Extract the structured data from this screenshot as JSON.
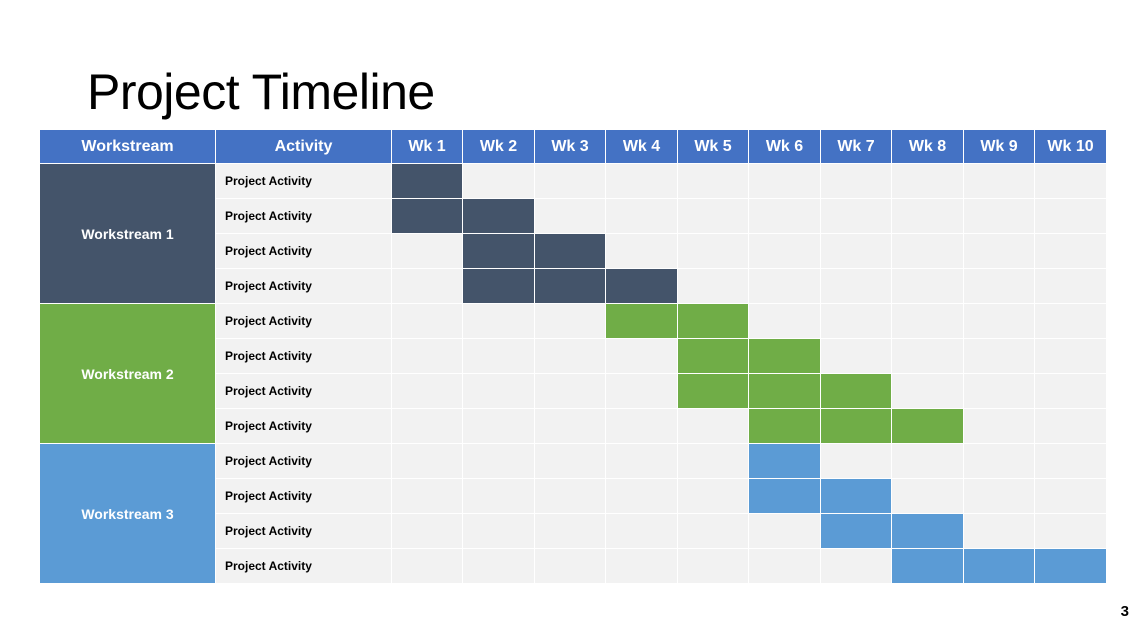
{
  "title": "Project Timeline",
  "slide_number": "3",
  "colors": {
    "header_bg": "#4472C4",
    "grid_bg": "#F2F2F2",
    "workstream_1": "#44546A",
    "workstream_2": "#70AD47",
    "workstream_3": "#5B9BD5"
  },
  "table": {
    "headers": [
      "Workstream",
      "Activity",
      "Wk 1",
      "Wk 2",
      "Wk 3",
      "Wk 4",
      "Wk 5",
      "Wk 6",
      "Wk 7",
      "Wk 8",
      "Wk 9",
      "Wk 10"
    ],
    "workstreams": [
      {
        "name": "Workstream 1",
        "color": "#44546A",
        "activities": [
          {
            "label": "Project Activity",
            "start_week": 1,
            "end_week": 1
          },
          {
            "label": "Project Activity",
            "start_week": 1,
            "end_week": 2
          },
          {
            "label": "Project Activity",
            "start_week": 2,
            "end_week": 3
          },
          {
            "label": "Project Activity",
            "start_week": 2,
            "end_week": 4
          }
        ]
      },
      {
        "name": "Workstream 2",
        "color": "#70AD47",
        "activities": [
          {
            "label": "Project Activity",
            "start_week": 4,
            "end_week": 5
          },
          {
            "label": "Project Activity",
            "start_week": 5,
            "end_week": 6
          },
          {
            "label": "Project Activity",
            "start_week": 5,
            "end_week": 7
          },
          {
            "label": "Project Activity",
            "start_week": 6,
            "end_week": 8
          }
        ]
      },
      {
        "name": "Workstream 3",
        "color": "#5B9BD5",
        "activities": [
          {
            "label": "Project Activity",
            "start_week": 6,
            "end_week": 6
          },
          {
            "label": "Project Activity",
            "start_week": 6,
            "end_week": 7
          },
          {
            "label": "Project Activity",
            "start_week": 7,
            "end_week": 8
          },
          {
            "label": "Project Activity",
            "start_week": 8,
            "end_week": 10
          }
        ]
      }
    ]
  }
}
